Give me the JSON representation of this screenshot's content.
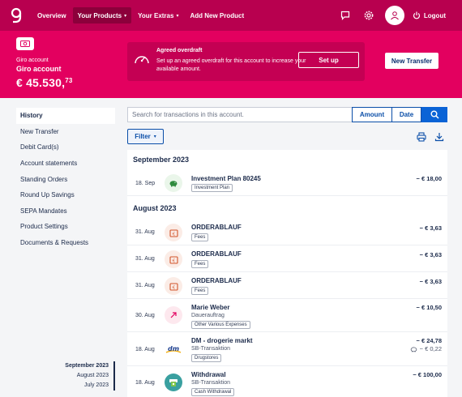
{
  "nav": {
    "items": [
      {
        "label": "Overview"
      },
      {
        "label": "Your Products"
      },
      {
        "label": "Your Extras"
      },
      {
        "label": "Add New Product"
      }
    ],
    "logout_label": "Logout"
  },
  "account": {
    "type": "Giro account",
    "name": "Giro account",
    "balance_main": "€ 45.530,",
    "balance_cents": "73"
  },
  "overdraft": {
    "title": "Agreed overdraft",
    "text": "Set up an agreed overdraft for this account to increase your available amount.",
    "button": "Set up"
  },
  "new_transfer_label": "New Transfer",
  "sidebar": {
    "items": [
      {
        "label": "History"
      },
      {
        "label": "New Transfer"
      },
      {
        "label": "Debit Card(s)"
      },
      {
        "label": "Account statements"
      },
      {
        "label": "Standing Orders"
      },
      {
        "label": "Round Up Savings"
      },
      {
        "label": "SEPA Mandates"
      },
      {
        "label": "Product Settings"
      },
      {
        "label": "Documents & Requests"
      }
    ],
    "months": [
      "September 2023",
      "August 2023",
      "July 2023"
    ]
  },
  "search": {
    "placeholder": "Search for transactions in this account.",
    "amount_label": "Amount",
    "date_label": "Date"
  },
  "filter_label": "Filter",
  "transactions": {
    "sep_heading": "September 2023",
    "aug_heading": "August 2023",
    "rows": [
      {
        "date": "18. Sep",
        "title": "Investment Plan 80245",
        "tag": "Investment Plan",
        "amount": "− € 18,00"
      },
      {
        "date": "31. Aug",
        "title": "ORDERABLAUF",
        "tag": "Fees",
        "amount": "− € 3,63"
      },
      {
        "date": "31. Aug",
        "title": "ORDERABLAUF",
        "tag": "Fees",
        "amount": "− € 3,63"
      },
      {
        "date": "31. Aug",
        "title": "ORDERABLAUF",
        "tag": "Fees",
        "amount": "− € 3,63"
      },
      {
        "date": "30. Aug",
        "title": "Marie Weber",
        "sub": "Dauerauftrag",
        "tag": "Other Various Expenses",
        "amount": "− € 10,50"
      },
      {
        "date": "18. Aug",
        "title": "DM - drogerie markt",
        "sub": "SB-Transaktion",
        "tag": "Drugstores",
        "amount": "− € 24,78",
        "amount2": "− € 0,22",
        "icon_text": "dm"
      },
      {
        "date": "18. Aug",
        "title": "Withdrawal",
        "sub": "SB-Transaktion",
        "tag": "Cash Withdrawal",
        "amount": "− € 100,00"
      }
    ]
  }
}
